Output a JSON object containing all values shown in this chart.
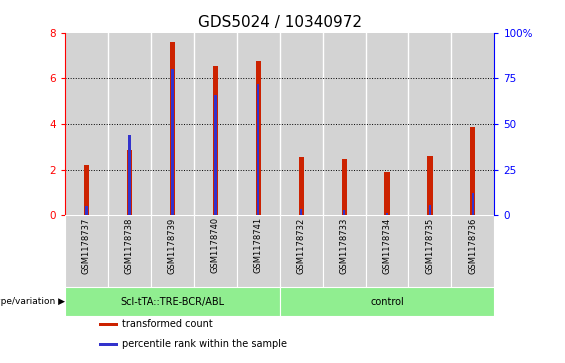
{
  "title": "GDS5024 / 10340972",
  "samples": [
    "GSM1178737",
    "GSM1178738",
    "GSM1178739",
    "GSM1178740",
    "GSM1178741",
    "GSM1178732",
    "GSM1178733",
    "GSM1178734",
    "GSM1178735",
    "GSM1178736"
  ],
  "transformed_counts": [
    2.2,
    2.85,
    7.6,
    6.55,
    6.75,
    2.55,
    2.45,
    1.9,
    2.6,
    3.85
  ],
  "percentile_ranks": [
    5.0,
    44.0,
    80.0,
    66.0,
    72.0,
    3.5,
    3.0,
    1.0,
    5.5,
    12.0
  ],
  "groups": [
    {
      "label": "Scl-tTA::TRE-BCR/ABL",
      "indices": [
        0,
        1,
        2,
        3,
        4
      ],
      "color": "#90ee90"
    },
    {
      "label": "control",
      "indices": [
        5,
        6,
        7,
        8,
        9
      ],
      "color": "#90ee90"
    }
  ],
  "bar_color": "#cc2200",
  "percentile_color": "#3333cc",
  "left_ylim": [
    0,
    8
  ],
  "right_ylim": [
    0,
    100
  ],
  "left_yticks": [
    0,
    2,
    4,
    6,
    8
  ],
  "right_yticks": [
    0,
    25,
    50,
    75,
    100
  ],
  "right_yticklabels": [
    "0",
    "25",
    "50",
    "75",
    "100%"
  ],
  "grid_color": "black",
  "bg_color": "#d3d3d3",
  "plot_bg": "#ffffff",
  "genotype_label": "genotype/variation",
  "legend_items": [
    {
      "label": "transformed count",
      "color": "#cc2200"
    },
    {
      "label": "percentile rank within the sample",
      "color": "#3333cc"
    }
  ],
  "red_bar_width": 0.12,
  "blue_bar_width": 0.06,
  "title_fontsize": 11,
  "tick_fontsize": 7.5,
  "sample_fontsize": 6,
  "group_fontsize": 7,
  "legend_fontsize": 7
}
